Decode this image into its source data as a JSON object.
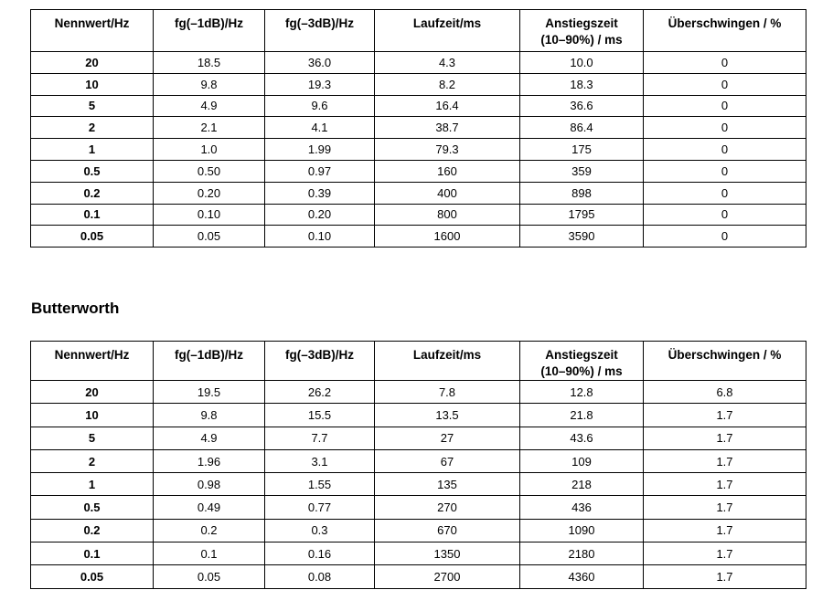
{
  "butterworth_heading": "Butterworth",
  "colors": {
    "background": "#ffffff",
    "text": "#000000",
    "border": "#000000"
  },
  "tables": [
    {
      "id": "filter-table-top",
      "columns": [
        "Nennwert/Hz",
        "fg(–1dB)/Hz",
        "fg(–3dB)/Hz",
        "Laufzeit/ms",
        "Anstiegszeit\n(10–90%) / ms",
        "Überschwingen / %"
      ],
      "rows": [
        [
          "20",
          "18.5",
          "36.0",
          "4.3",
          "10.0",
          "0"
        ],
        [
          "10",
          "9.8",
          "19.3",
          "8.2",
          "18.3",
          "0"
        ],
        [
          "5",
          "4.9",
          "9.6",
          "16.4",
          "36.6",
          "0"
        ],
        [
          "2",
          "2.1",
          "4.1",
          "38.7",
          "86.4",
          "0"
        ],
        [
          "1",
          "1.0",
          "1.99",
          "79.3",
          "175",
          "0"
        ],
        [
          "0.5",
          "0.50",
          "0.97",
          "160",
          "359",
          "0"
        ],
        [
          "0.2",
          "0.20",
          "0.39",
          "400",
          "898",
          "0"
        ],
        [
          "0.1",
          "0.10",
          "0.20",
          "800",
          "1795",
          "0"
        ],
        [
          "0.05",
          "0.05",
          "0.10",
          "1600",
          "3590",
          "0"
        ]
      ]
    },
    {
      "id": "filter-table-butterworth",
      "heading": "Butterworth",
      "columns": [
        "Nennwert/Hz",
        "fg(–1dB)/Hz",
        "fg(–3dB)/Hz",
        "Laufzeit/ms",
        "Anstiegszeit\n(10–90%) / ms",
        "Überschwingen / %"
      ],
      "rows": [
        [
          "20",
          "19.5",
          "26.2",
          "7.8",
          "12.8",
          "6.8"
        ],
        [
          "10",
          "9.8",
          "15.5",
          "13.5",
          "21.8",
          "1.7"
        ],
        [
          "5",
          "4.9",
          "7.7",
          "27",
          "43.6",
          "1.7"
        ],
        [
          "2",
          "1.96",
          "3.1",
          "67",
          "109",
          "1.7"
        ],
        [
          "1",
          "0.98",
          "1.55",
          "135",
          "218",
          "1.7"
        ],
        [
          "0.5",
          "0.49",
          "0.77",
          "270",
          "436",
          "1.7"
        ],
        [
          "0.2",
          "0.2",
          "0.3",
          "670",
          "1090",
          "1.7"
        ],
        [
          "0.1",
          "0.1",
          "0.16",
          "1350",
          "2180",
          "1.7"
        ],
        [
          "0.05",
          "0.05",
          "0.08",
          "2700",
          "4360",
          "1.7"
        ]
      ]
    }
  ]
}
